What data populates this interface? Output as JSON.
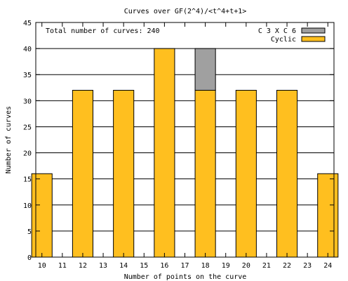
{
  "chart_data": {
    "type": "bar",
    "title": "Curves over GF(2^4)/<t^4+t+1>",
    "xlabel": "Number of points on the curve",
    "ylabel": "Number of curves",
    "annotation": "Total number of curves: 240",
    "x_ticks": [
      "10",
      "11",
      "12",
      "13",
      "14",
      "15",
      "16",
      "17",
      "18",
      "19",
      "20",
      "21",
      "22",
      "23",
      "24"
    ],
    "xlim": [
      9.7,
      24.3
    ],
    "ylim": [
      0,
      45
    ],
    "y_ticks": [
      0,
      5,
      10,
      15,
      20,
      25,
      30,
      35,
      40,
      45
    ],
    "grid": "horizontal",
    "legend_position": "top-right",
    "stacked": true,
    "categories": [
      10,
      12,
      14,
      16,
      18,
      20,
      22,
      24
    ],
    "series": [
      {
        "name": "Cyclic",
        "color": "#ffbf1f",
        "values": [
          16,
          32,
          32,
          40,
          32,
          32,
          32,
          16
        ]
      },
      {
        "name": "C 3 X C 6",
        "color": "#a0a0a0",
        "values": [
          0,
          0,
          0,
          0,
          8,
          0,
          0,
          0
        ]
      }
    ],
    "legend_order": [
      "C 3 X C 6",
      "Cyclic"
    ]
  }
}
